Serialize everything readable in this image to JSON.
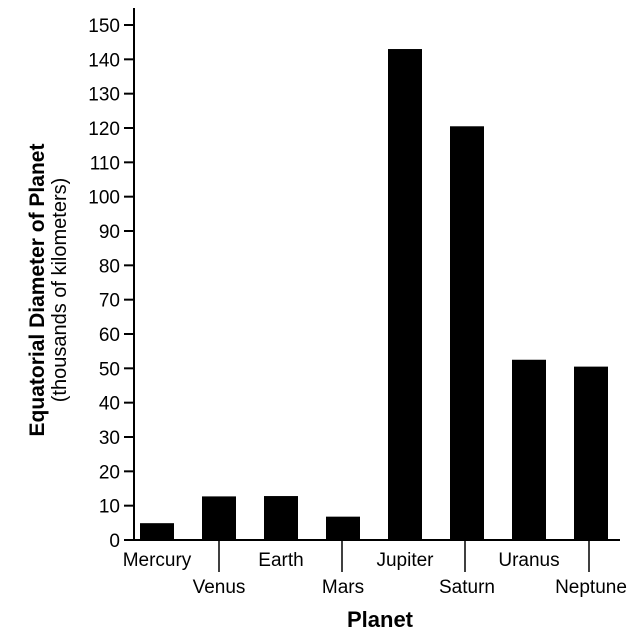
{
  "chart_data": {
    "type": "bar",
    "categories": [
      "Mercury",
      "Venus",
      "Earth",
      "Mars",
      "Jupiter",
      "Saturn",
      "Uranus",
      "Neptune"
    ],
    "values": [
      4.9,
      12.7,
      12.8,
      6.8,
      143,
      120.5,
      52.5,
      50.5
    ],
    "xlabel": "Planet",
    "ylabel": "Equatorial Diameter of Planet",
    "ylabel_sub": "(thousands of kilometers)",
    "ylim": [
      0,
      150
    ],
    "yticks": [
      0,
      10,
      20,
      30,
      40,
      50,
      60,
      70,
      80,
      90,
      100,
      110,
      120,
      130,
      140,
      150
    ],
    "grid": false,
    "bar_color": "#000000"
  }
}
